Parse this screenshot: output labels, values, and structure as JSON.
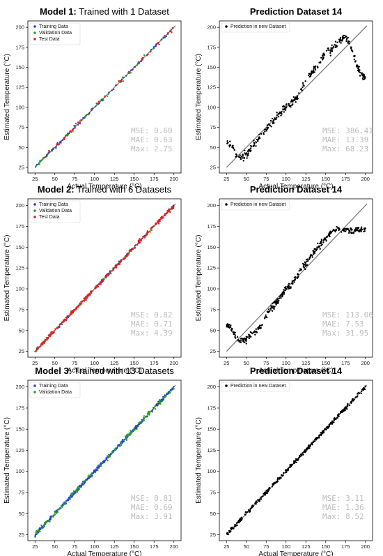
{
  "chart_data": [
    {
      "type": "scatter",
      "title_bold": "Model 1:",
      "title_rest": " Trained with 1 Dataset",
      "xlabel": "Actual Temperature  (°C)",
      "ylabel": "Estimated Temperature  (°C)",
      "xlim": [
        16,
        209
      ],
      "ylim": [
        18,
        208
      ],
      "xticks": [
        25,
        50,
        75,
        100,
        125,
        150,
        175,
        200
      ],
      "yticks": [
        25,
        50,
        75,
        100,
        125,
        150,
        175,
        200
      ],
      "identity_line": true,
      "legend": "top-left",
      "series": [
        {
          "name": "Training Data",
          "color": "#1f3fd0",
          "kind": "diag",
          "from": 25,
          "to": 200,
          "n": 90,
          "noise": 1.4
        },
        {
          "name": "Validation Data",
          "color": "#2aa02a",
          "kind": "diag",
          "from": 25,
          "to": 200,
          "n": 50,
          "noise": 1.8
        },
        {
          "name": "Test Data",
          "color": "#e02020",
          "kind": "diag",
          "from": 25,
          "to": 200,
          "n": 60,
          "noise": 2.0
        }
      ],
      "stats": [
        "MSE:  0.60",
        "MAE:  0.63",
        "Max:  2.75"
      ]
    },
    {
      "type": "scatter",
      "title_bold": "Prediction Dataset 14",
      "title_rest": "",
      "xlabel": "Actual Temperature  (°C)",
      "ylabel": "Estimated Temperature  (°C)",
      "xlim": [
        16,
        209
      ],
      "ylim": [
        18,
        208
      ],
      "xticks": [
        25,
        50,
        75,
        100,
        125,
        150,
        175,
        200
      ],
      "yticks": [
        25,
        50,
        75,
        100,
        125,
        150,
        175,
        200
      ],
      "identity_line": true,
      "legend": "top-left",
      "series": [
        {
          "name": "Prediction in new Dataset",
          "color": "#000000",
          "kind": "curve",
          "curve": [
            [
              25,
              55
            ],
            [
              30,
              54
            ],
            [
              35,
              48
            ],
            [
              40,
              38
            ],
            [
              45,
              38
            ],
            [
              50,
              42
            ],
            [
              55,
              48
            ],
            [
              60,
              55
            ],
            [
              65,
              60
            ],
            [
              70,
              66
            ],
            [
              75,
              72
            ],
            [
              80,
              78
            ],
            [
              85,
              84
            ],
            [
              90,
              90
            ],
            [
              95,
              96
            ],
            [
              100,
              100
            ],
            [
              105,
              104
            ],
            [
              110,
              108
            ],
            [
              115,
              115
            ],
            [
              120,
              125
            ],
            [
              125,
              132
            ],
            [
              130,
              140
            ],
            [
              135,
              148
            ],
            [
              140,
              152
            ],
            [
              145,
              160
            ],
            [
              150,
              168
            ],
            [
              155,
              170
            ],
            [
              160,
              175
            ],
            [
              165,
              180
            ],
            [
              170,
              185
            ],
            [
              175,
              188
            ],
            [
              180,
              180
            ],
            [
              185,
              165
            ],
            [
              190,
              150
            ],
            [
              195,
              140
            ],
            [
              200,
              136
            ]
          ],
          "n": 320,
          "noise": 3.5
        }
      ],
      "stats": [
        "MSE: 386.41",
        "MAE:  13.39",
        "Max:  68.23"
      ]
    },
    {
      "type": "scatter",
      "title_bold": "Model 2:",
      "title_rest": " Trained with 6 Datasets",
      "xlabel": "Actual Temperature  (°C)",
      "ylabel": "Estimated Temperature  (°C)",
      "xlim": [
        16,
        209
      ],
      "ylim": [
        18,
        208
      ],
      "xticks": [
        25,
        50,
        75,
        100,
        125,
        150,
        175,
        200
      ],
      "yticks": [
        25,
        50,
        75,
        100,
        125,
        150,
        175,
        200
      ],
      "identity_line": true,
      "legend": "top-left",
      "series": [
        {
          "name": "Training Data",
          "color": "#1f3fd0",
          "kind": "diag",
          "from": 25,
          "to": 200,
          "n": 80,
          "noise": 1.4
        },
        {
          "name": "Validation Data",
          "color": "#2aa02a",
          "kind": "diag",
          "from": 25,
          "to": 200,
          "n": 60,
          "noise": 1.6
        },
        {
          "name": "Test Data",
          "color": "#e02020",
          "kind": "diag",
          "from": 25,
          "to": 200,
          "n": 260,
          "noise": 1.6
        }
      ],
      "stats": [
        "MSE:  0.82",
        "MAE:  0.71",
        "Max:  4.39"
      ]
    },
    {
      "type": "scatter",
      "title_bold": "Prediction Dataset 14",
      "title_rest": "",
      "xlabel": "Actual Temperature  (°C)",
      "ylabel": "Estimated Temperature  (°C)",
      "xlim": [
        16,
        209
      ],
      "ylim": [
        18,
        208
      ],
      "xticks": [
        25,
        50,
        75,
        100,
        125,
        150,
        175,
        200
      ],
      "yticks": [
        25,
        50,
        75,
        100,
        125,
        150,
        175,
        200
      ],
      "identity_line": true,
      "legend": "top-left",
      "series": [
        {
          "name": "Prediction in new Dataset",
          "color": "#000000",
          "kind": "curve",
          "curve": [
            [
              25,
              56
            ],
            [
              30,
              55
            ],
            [
              35,
              45
            ],
            [
              40,
              38
            ],
            [
              45,
              38
            ],
            [
              50,
              40
            ],
            [
              55,
              44
            ],
            [
              60,
              48
            ],
            [
              65,
              52
            ],
            [
              70,
              58
            ],
            [
              75,
              68
            ],
            [
              80,
              76
            ],
            [
              85,
              80
            ],
            [
              90,
              85
            ],
            [
              95,
              92
            ],
            [
              100,
              100
            ],
            [
              105,
              104
            ],
            [
              110,
              110
            ],
            [
              115,
              116
            ],
            [
              120,
              124
            ],
            [
              125,
              130
            ],
            [
              130,
              138
            ],
            [
              135,
              144
            ],
            [
              140,
              150
            ],
            [
              145,
              156
            ],
            [
              150,
              160
            ],
            [
              155,
              165
            ],
            [
              160,
              170
            ],
            [
              165,
              172
            ],
            [
              170,
              172
            ],
            [
              175,
              171
            ],
            [
              180,
              170
            ],
            [
              185,
              170
            ],
            [
              190,
              171
            ],
            [
              195,
              171
            ],
            [
              200,
              172
            ]
          ],
          "n": 360,
          "noise": 2.8
        }
      ],
      "stats": [
        "MSE: 113.06",
        "MAE:   7.53",
        "Max:  31.95"
      ]
    },
    {
      "type": "scatter",
      "title_bold": "Model 3:",
      "title_rest": " Trained with 13 Datasets",
      "xlabel": "Actual Temperature  (°C)",
      "ylabel": "Estimated Temperature  (°C)",
      "xlim": [
        16,
        209
      ],
      "ylim": [
        18,
        208
      ],
      "xticks": [
        25,
        50,
        75,
        100,
        125,
        150,
        175,
        200
      ],
      "yticks": [
        25,
        50,
        75,
        100,
        125,
        150,
        175,
        200
      ],
      "identity_line": true,
      "legend": "top-left",
      "series": [
        {
          "name": "Training Data",
          "color": "#1f3fd0",
          "kind": "diag",
          "from": 25,
          "to": 200,
          "n": 320,
          "noise": 1.4
        },
        {
          "name": "Validation Data",
          "color": "#2aa02a",
          "kind": "diag",
          "from": 25,
          "to": 200,
          "n": 160,
          "noise": 2.2
        }
      ],
      "stats": [
        "MSE:  0.81",
        "MAE:  0.69",
        "Max:  3.91"
      ]
    },
    {
      "type": "scatter",
      "title_bold": "Prediction Dataset 14",
      "title_rest": "",
      "xlabel": "Actual Temperature  (°C)",
      "ylabel": "Estimated Temperature  (°C)",
      "xlim": [
        16,
        209
      ],
      "ylim": [
        18,
        208
      ],
      "xticks": [
        25,
        50,
        75,
        100,
        125,
        150,
        175,
        200
      ],
      "yticks": [
        25,
        50,
        75,
        100,
        125,
        150,
        175,
        200
      ],
      "identity_line": true,
      "legend": "top-left",
      "series": [
        {
          "name": "Prediction in new Dataset",
          "color": "#000000",
          "kind": "diag",
          "from": 25,
          "to": 200,
          "n": 340,
          "noise": 1.6
        }
      ],
      "stats": [
        "MSE:   3.11",
        "MAE:   1.36",
        "Max:   8.52"
      ]
    }
  ]
}
